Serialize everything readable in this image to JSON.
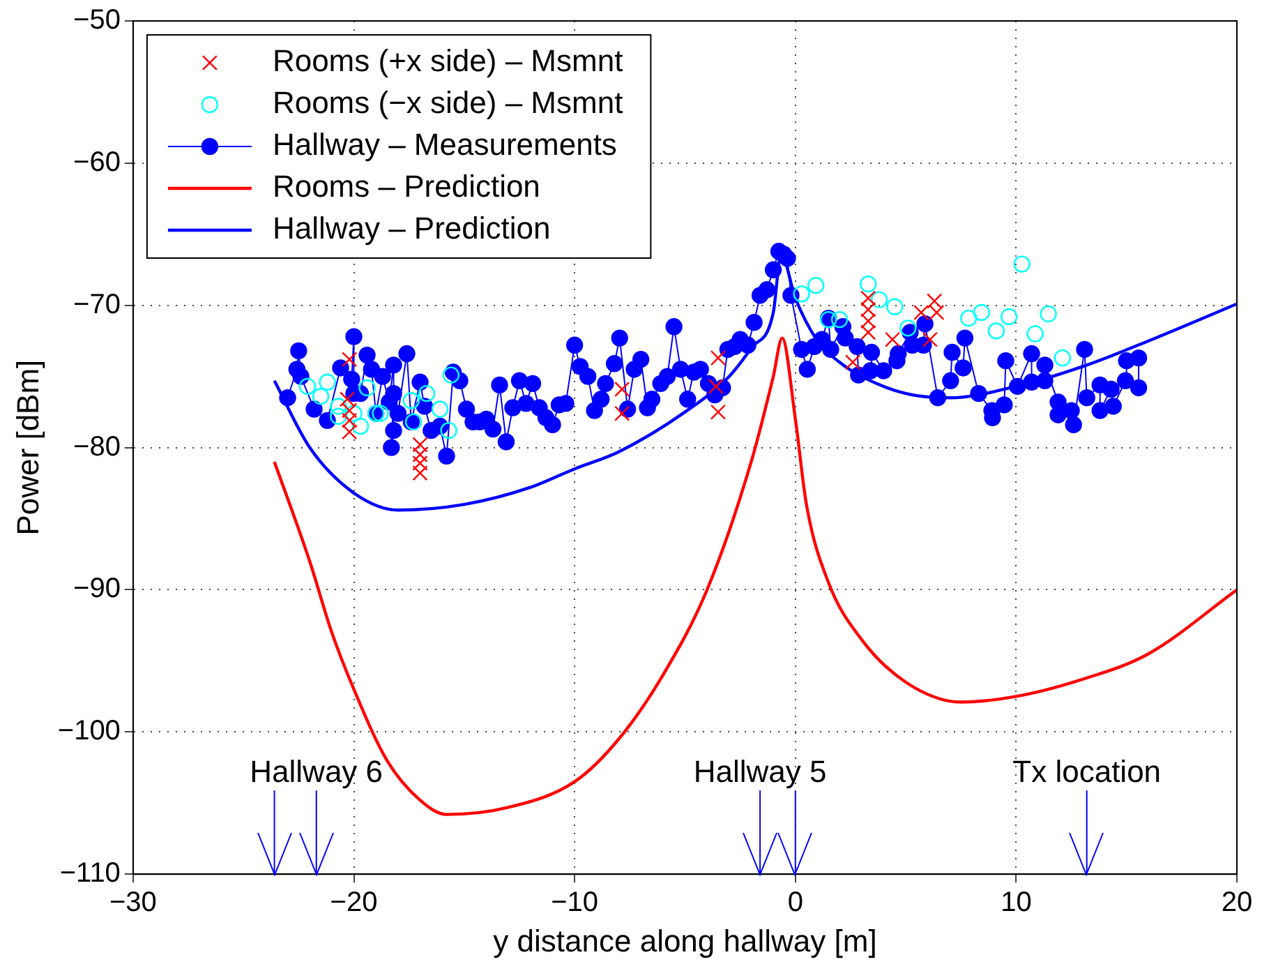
{
  "chart_data": {
    "type": "line",
    "xlabel": "y distance along hallway [m]",
    "ylabel": "Power [dBm]",
    "xlim": [
      -30,
      20
    ],
    "ylim": [
      -110,
      -50
    ],
    "xticks": [
      -30,
      -20,
      -10,
      0,
      10,
      20
    ],
    "yticks": [
      -110,
      -100,
      -90,
      -80,
      -70,
      -60,
      -50
    ],
    "grid": true,
    "legend": "top left",
    "line_style": "solid",
    "series": [
      {
        "name": "Rooms (+x side) – Msmnt",
        "type": "scatter",
        "marker": "cross",
        "color": "#ff0000",
        "x": [
          -20.2,
          -20.3,
          -20.2,
          -20.2,
          -20.2,
          -17.0,
          -17.0,
          -17.0,
          -17.0,
          -7.85,
          -7.85,
          -3.5,
          -3.6,
          -3.5,
          2.6,
          3.3,
          3.3,
          3.3,
          3.3,
          4.4,
          5.7,
          6.1,
          6.3,
          6.4
        ],
        "values": [
          -73.8,
          -76.6,
          -77.4,
          -78.1,
          -78.9,
          -79.8,
          -80.5,
          -81.1,
          -81.8,
          -75.9,
          -77.6,
          -73.7,
          -75.7,
          -77.5,
          -74.0,
          -69.5,
          -70.3,
          -71.1,
          -71.9,
          -72.4,
          -70.5,
          -72.4,
          -69.7,
          -70.5
        ]
      },
      {
        "name": "Rooms (−x side) – Msmnt",
        "type": "scatter",
        "marker": "circle",
        "color": "#00ffff",
        "x": [
          -22.1,
          -21.5,
          -21.2,
          -20.7,
          -20.7,
          -20.0,
          -19.7,
          -19.4,
          -19.0,
          -18.8,
          -17.4,
          -17.3,
          -16.7,
          -16.1,
          -15.7,
          -15.6,
          0.28,
          0.93,
          1.5,
          2.0,
          3.3,
          3.8,
          4.5,
          5.1,
          7.85,
          8.43,
          9.1,
          9.68,
          10.26,
          10.86,
          11.46,
          12.1
        ],
        "values": [
          -75.7,
          -76.4,
          -75.4,
          -77.1,
          -77.8,
          -77.6,
          -78.5,
          -75.8,
          -77.6,
          -77.6,
          -76.7,
          -78.2,
          -76.2,
          -77.3,
          -78.8,
          -74.9,
          -69.2,
          -68.6,
          -71.0,
          -71.0,
          -68.5,
          -69.6,
          -70.1,
          -71.6,
          -70.9,
          -70.5,
          -71.8,
          -70.8,
          -67.1,
          -72.0,
          -70.6,
          -73.7
        ]
      },
      {
        "name": "Hallway – Measurements",
        "marker": "circle",
        "color": "#0000ff",
        "x": [
          -23.0,
          -22.58,
          -22.5,
          -22.4,
          -21.8,
          -21.2,
          -20.6,
          -20.1,
          -20.0,
          -20.0,
          -19.7,
          -19.4,
          -19.2,
          -19.0,
          -18.7,
          -18.4,
          -18.2,
          -18.2,
          -18.3,
          -18.2,
          -18.0,
          -17.6,
          -17.4,
          -17.0,
          -16.8,
          -16.5,
          -16.1,
          -15.8,
          -15.5,
          -15.2,
          -14.9,
          -14.6,
          -14.3,
          -14.0,
          -13.7,
          -13.4,
          -13.1,
          -12.8,
          -12.5,
          -12.2,
          -11.9,
          -11.6,
          -11.3,
          -11.0,
          -10.7,
          -10.4,
          -10.0,
          -9.75,
          -9.4,
          -9.1,
          -8.8,
          -8.6,
          -8.2,
          -7.96,
          -7.6,
          -7.3,
          -7.0,
          -6.7,
          -6.5,
          -6.1,
          -5.8,
          -5.5,
          -5.2,
          -4.88,
          -4.6,
          -4.3,
          -3.94,
          -3.65,
          -3.3,
          -3.06,
          -2.75,
          -2.5,
          -2.15,
          -1.87,
          -1.6,
          -1.29,
          -1.0,
          -0.75,
          -0.53,
          -0.36,
          -0.2,
          0.28,
          0.54,
          0.86,
          1.2,
          1.5,
          1.6,
          2.15,
          2.26,
          2.8,
          2.86,
          3.4,
          3.45,
          4.0,
          4.6,
          4.66,
          5.2,
          5.3,
          5.8,
          5.87,
          6.45,
          7.03,
          7.1,
          7.6,
          7.68,
          8.3,
          8.9,
          8.93,
          9.46,
          9.53,
          10.06,
          10.7,
          10.7,
          11.3,
          11.3,
          11.9,
          11.9,
          12.5,
          12.6,
          13.1,
          13.2,
          13.8,
          13.8,
          14.3,
          14.4,
          14.95,
          15.0,
          15.55,
          15.55
        ],
        "values": [
          -76.5,
          -74.5,
          -73.2,
          -75.0,
          -77.3,
          -78.1,
          -74.4,
          -75.2,
          -72.2,
          -76.2,
          -76.2,
          -73.5,
          -74.5,
          -77.6,
          -75.0,
          -76.8,
          -74.2,
          -78.8,
          -80.0,
          -76.2,
          -77.6,
          -73.4,
          -78.2,
          -75.4,
          -77.1,
          -78.8,
          -78.5,
          -80.6,
          -74.7,
          -75.3,
          -77.3,
          -78.2,
          -78.2,
          -78.0,
          -78.7,
          -75.6,
          -79.6,
          -77.2,
          -75.3,
          -76.9,
          -75.5,
          -77.2,
          -77.9,
          -78.4,
          -77.0,
          -76.9,
          -72.8,
          -74.3,
          -75.0,
          -77.4,
          -76.6,
          -75.5,
          -74.1,
          -72.3,
          -77.3,
          -74.5,
          -73.8,
          -77.2,
          -76.6,
          -75.5,
          -75.0,
          -71.5,
          -74.5,
          -76.6,
          -74.7,
          -74.5,
          -75.5,
          -76.3,
          -75.8,
          -73.1,
          -72.9,
          -72.4,
          -72.8,
          -71.2,
          -69.3,
          -68.9,
          -67.5,
          -66.2,
          -66.4,
          -66.7,
          -69.3,
          -73.1,
          -74.5,
          -72.9,
          -72.4,
          -70.9,
          -73.1,
          -71.5,
          -72.3,
          -72.9,
          -74.9,
          -74.6,
          -73.3,
          -74.6,
          -73.9,
          -73.4,
          -71.9,
          -72.8,
          -72.8,
          -71.3,
          -76.5,
          -75.3,
          -73.3,
          -74.4,
          -72.3,
          -76.2,
          -77.4,
          -77.9,
          -77.0,
          -73.9,
          -75.7,
          -73.4,
          -75.4,
          -75.3,
          -74.2,
          -76.8,
          -77.7,
          -77.4,
          -78.4,
          -73.1,
          -76.5,
          -75.6,
          -77.4,
          -75.9,
          -77.1,
          -75.3,
          -73.9,
          -73.7,
          -75.8
        ]
      },
      {
        "name": "Rooms – Prediction",
        "marker": "none",
        "color": "#ff0000",
        "x": [
          -23.6,
          -22,
          -21,
          -20,
          -18.5,
          -17,
          -15.8,
          -13,
          -10,
          -8,
          -6,
          -4,
          -2,
          -1,
          -0.6,
          0,
          0.5,
          1.5,
          3,
          5,
          7.5,
          10,
          13,
          16,
          20
        ],
        "values": [
          -81,
          -88,
          -93,
          -97,
          -102,
          -104.8,
          -105.8,
          -105.3,
          -103.5,
          -100.5,
          -96,
          -90,
          -81,
          -75,
          -72.3,
          -78,
          -84,
          -89.5,
          -93.5,
          -96.5,
          -97.9,
          -97.5,
          -96.3,
          -94.5,
          -90
        ]
      },
      {
        "name": "Hallway – Prediction",
        "marker": "none",
        "color": "#0000ff",
        "x": [
          -23.6,
          -22,
          -20,
          -18,
          -15,
          -12,
          -10,
          -8,
          -5,
          -3,
          -2,
          -1,
          -0.65,
          0,
          1,
          2,
          3,
          5,
          7,
          10,
          13.2,
          16,
          20
        ],
        "values": [
          -75.3,
          -80,
          -83.2,
          -84.4,
          -84,
          -82.8,
          -81.5,
          -80.3,
          -77.5,
          -75,
          -73,
          -70.5,
          -66.4,
          -69.5,
          -72.5,
          -74,
          -75,
          -76.2,
          -76.5,
          -75.7,
          -74.2,
          -72.5,
          -69.9
        ]
      }
    ],
    "ref_lines": [
      {
        "axis": "x",
        "value": -23.6,
        "color": "#0000ff"
      },
      {
        "axis": "x",
        "value": -21.7,
        "color": "#0000ff",
        "label": "Hallway 6"
      },
      {
        "axis": "x",
        "value": -1.6,
        "color": "#0000ff",
        "label": "Hallway 5"
      },
      {
        "axis": "x",
        "value": 0,
        "color": "#0000ff"
      },
      {
        "axis": "x",
        "value": 13.2,
        "color": "#0000ff",
        "label": "Tx location"
      }
    ]
  }
}
